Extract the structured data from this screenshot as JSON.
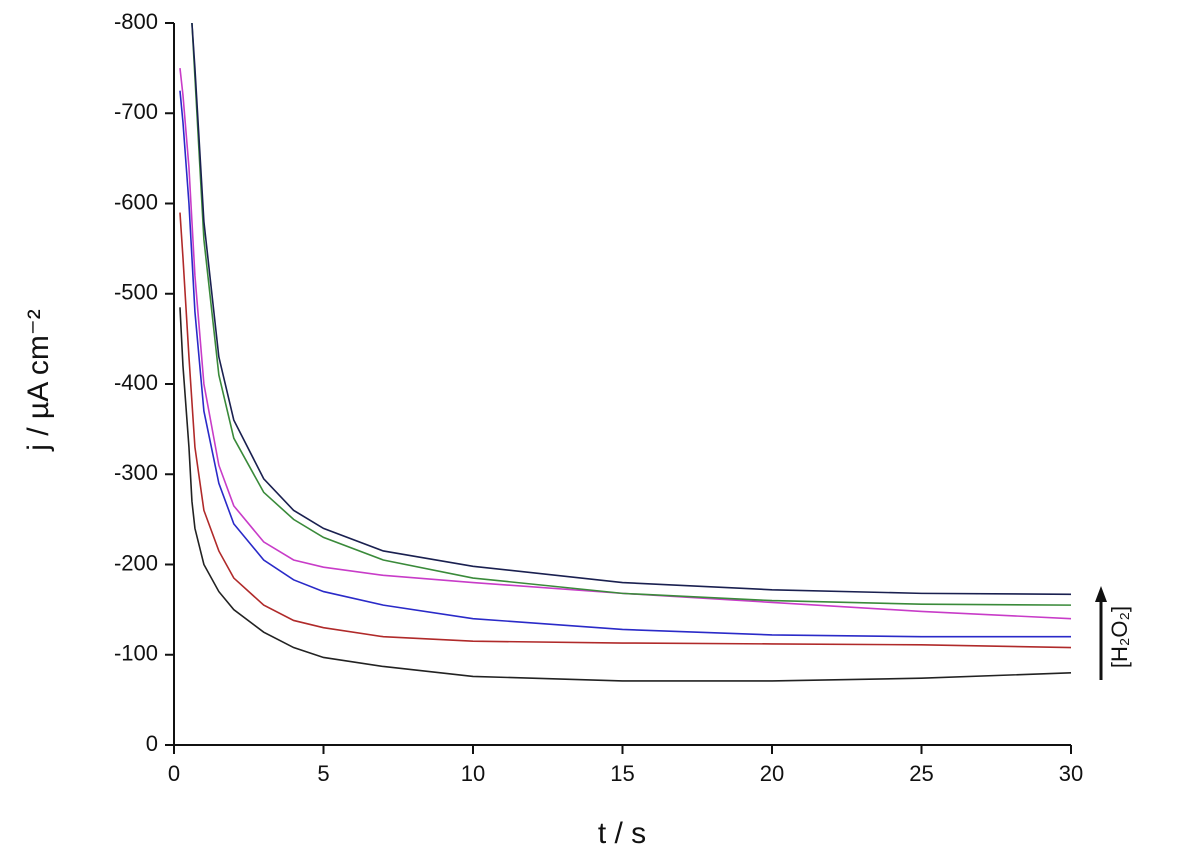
{
  "chart_data": {
    "type": "line",
    "x_label": "t / s",
    "y_label": "j / µA cm⁻²",
    "annotation": "[H₂O₂]",
    "x": [
      0.2,
      0.3,
      0.5,
      0.6,
      0.7,
      1,
      1.5,
      2,
      3,
      4,
      5,
      7,
      10,
      15,
      20,
      25,
      30
    ],
    "series": [
      {
        "color": "#222222",
        "values": [
          -485,
          -420,
          -330,
          -270,
          -240,
          -200,
          -170,
          -150,
          -125,
          -108,
          -97,
          -87,
          -76,
          -71,
          -71,
          -74,
          -80
        ]
      },
      {
        "color": "#b02a2a",
        "values": [
          -590,
          -540,
          -430,
          -380,
          -330,
          -260,
          -215,
          -185,
          -155,
          -138,
          -130,
          -120,
          -115,
          -113,
          -112,
          -111,
          -108
        ]
      },
      {
        "color": "#2a2ac8",
        "values": [
          -725,
          -690,
          -600,
          -540,
          -480,
          -370,
          -290,
          -245,
          -205,
          -183,
          -170,
          -155,
          -140,
          -128,
          -122,
          -120,
          -120
        ]
      },
      {
        "color": "#c83cc8",
        "values": [
          -750,
          -720,
          -640,
          -580,
          -520,
          -400,
          -310,
          -265,
          -225,
          -205,
          -197,
          -188,
          -180,
          -168,
          -158,
          -148,
          -140
        ]
      },
      {
        "color": "#3a8a3a",
        "values": [
          null,
          null,
          null,
          -800,
          -740,
          -560,
          -410,
          -340,
          -280,
          -250,
          -230,
          -205,
          -185,
          -168,
          -160,
          -156,
          -155
        ]
      },
      {
        "color": "#1a2050",
        "values": [
          null,
          null,
          null,
          -800,
          -750,
          -580,
          -430,
          -360,
          -295,
          -260,
          -240,
          -215,
          -198,
          -180,
          -172,
          -168,
          -167
        ]
      }
    ],
    "xlim": [
      0,
      30
    ],
    "xticks": [
      0,
      5,
      10,
      15,
      20,
      25,
      30
    ],
    "ylim": [
      0,
      -800
    ],
    "yticks": [
      0,
      -100,
      -200,
      -300,
      -400,
      -500,
      -600,
      -700,
      -800
    ],
    "grid": false
  }
}
